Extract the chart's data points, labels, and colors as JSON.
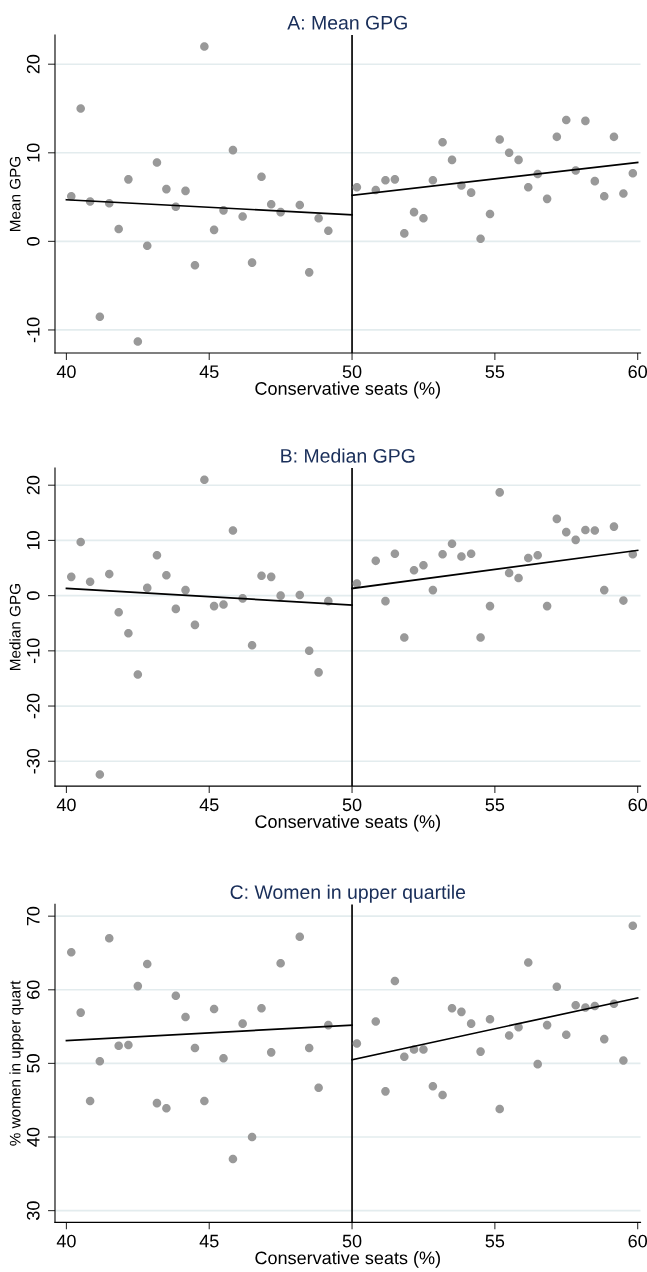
{
  "chart_data": [
    {
      "type": "scatter",
      "title": "A: Mean GPG",
      "xlabel": "Conservative seats (%)",
      "ylabel": "Mean GPG",
      "xlim": [
        39.6,
        60.1
      ],
      "xticks": [
        40,
        45,
        50,
        55,
        60
      ],
      "ylim": [
        -12.6,
        23.3
      ],
      "yticks": [
        {
          "value": -10,
          "label": "-10"
        },
        0,
        10,
        20
      ],
      "grid": "y",
      "marker": "circle",
      "ref_lines": [
        {
          "axis": "x",
          "value": 50,
          "color": "#000000"
        }
      ],
      "series": [
        {
          "color": "#999999",
          "x": [
            40.17,
            40.5,
            40.83,
            41.17,
            41.5,
            41.83,
            42.17,
            42.5,
            42.83,
            43.17,
            43.5,
            43.83,
            44.17,
            44.5,
            44.83,
            45.17,
            45.5,
            45.83,
            46.17,
            46.5,
            46.83,
            47.17,
            47.5,
            48.17,
            48.5,
            48.83,
            49.17,
            50.17,
            50.83,
            51.17,
            51.5,
            51.83,
            52.17,
            52.5,
            52.83,
            53.17,
            53.5,
            53.83,
            54.17,
            54.5,
            54.83,
            55.17,
            55.5,
            55.83,
            56.17,
            56.5,
            56.83,
            57.17,
            57.5,
            57.83,
            58.17,
            58.5,
            58.83,
            59.17,
            59.5,
            59.83
          ],
          "values": [
            5.1,
            15.0,
            4.5,
            -8.5,
            4.3,
            1.4,
            7.0,
            -11.3,
            -0.5,
            8.9,
            5.9,
            3.9,
            5.7,
            -2.7,
            22.0,
            1.3,
            3.5,
            10.3,
            2.8,
            -2.4,
            7.3,
            4.2,
            3.3,
            4.1,
            -3.5,
            2.6,
            1.2,
            6.1,
            5.8,
            6.9,
            7.0,
            0.9,
            3.3,
            2.6,
            6.9,
            11.2,
            9.2,
            6.3,
            5.5,
            0.3,
            3.1,
            11.5,
            10.0,
            9.2,
            6.1,
            7.6,
            4.8,
            11.8,
            13.7,
            8.0,
            13.6,
            6.8,
            5.1,
            11.8,
            5.4,
            7.7
          ]
        },
        {
          "type": "line",
          "marker": "none",
          "color": "#000000",
          "x": [
            40,
            50
          ],
          "values": [
            4.7,
            3.0
          ]
        },
        {
          "type": "line",
          "marker": "none",
          "color": "#000000",
          "x": [
            50,
            60
          ],
          "values": [
            5.2,
            8.9
          ]
        }
      ]
    },
    {
      "type": "scatter",
      "title": "B: Median GPG",
      "xlabel": "Conservative seats (%)",
      "ylabel": "Median GPG",
      "xlim": [
        39.6,
        60.1
      ],
      "xticks": [
        40,
        45,
        50,
        55,
        60
      ],
      "ylim": [
        -34.5,
        23.1
      ],
      "yticks": [
        {
          "value": -30,
          "label": "-30"
        },
        {
          "value": -20,
          "label": "-20"
        },
        {
          "value": -10,
          "label": "-10"
        },
        0,
        10,
        20
      ],
      "grid": "y",
      "marker": "circle",
      "ref_lines": [
        {
          "axis": "x",
          "value": 50,
          "color": "#000000"
        }
      ],
      "series": [
        {
          "color": "#999999",
          "x": [
            40.17,
            40.5,
            40.83,
            41.17,
            41.5,
            41.83,
            42.17,
            42.5,
            42.83,
            43.17,
            43.5,
            43.83,
            44.17,
            44.5,
            44.83,
            45.17,
            45.5,
            45.83,
            46.17,
            46.5,
            46.83,
            47.17,
            47.5,
            48.17,
            48.5,
            48.83,
            49.17,
            50.17,
            50.83,
            51.17,
            51.5,
            51.83,
            52.17,
            52.5,
            52.83,
            53.17,
            53.5,
            53.83,
            54.17,
            54.5,
            54.83,
            55.17,
            55.5,
            55.83,
            56.17,
            56.5,
            56.83,
            57.17,
            57.5,
            57.83,
            58.17,
            58.5,
            58.83,
            59.17,
            59.5,
            59.83
          ],
          "values": [
            3.4,
            9.7,
            2.5,
            -32.4,
            3.9,
            -3.0,
            -6.8,
            -14.3,
            1.4,
            7.3,
            3.7,
            -2.4,
            1.0,
            -5.3,
            21.0,
            -1.9,
            -1.6,
            11.8,
            -0.5,
            -9.0,
            3.6,
            3.4,
            0.0,
            0.1,
            -10.0,
            -13.9,
            -1.0,
            2.2,
            6.3,
            -1.0,
            7.6,
            -7.6,
            4.6,
            5.5,
            1.0,
            7.5,
            9.4,
            7.1,
            7.6,
            -7.6,
            -1.9,
            18.7,
            4.1,
            3.2,
            6.8,
            7.3,
            -1.9,
            13.9,
            11.5,
            10.1,
            11.9,
            11.8,
            1.0,
            12.5,
            -0.9,
            7.5
          ]
        },
        {
          "type": "line",
          "marker": "none",
          "color": "#000000",
          "x": [
            40,
            50
          ],
          "values": [
            1.3,
            -1.7
          ]
        },
        {
          "type": "line",
          "marker": "none",
          "color": "#000000",
          "x": [
            50,
            60
          ],
          "values": [
            1.3,
            8.2
          ]
        }
      ]
    },
    {
      "type": "scatter",
      "title": "C: Women in upper quartile",
      "xlabel": "Conservative seats (%)",
      "ylabel": "% women in upper quart",
      "xlim": [
        39.6,
        60.1
      ],
      "xticks": [
        40,
        45,
        50,
        55,
        60
      ],
      "ylim": [
        28.4,
        71.6
      ],
      "yticks": [
        30,
        40,
        50,
        60,
        70
      ],
      "grid": "y",
      "marker": "circle",
      "ref_lines": [
        {
          "axis": "x",
          "value": 50,
          "color": "#000000"
        }
      ],
      "series": [
        {
          "color": "#999999",
          "x": [
            40.17,
            40.5,
            40.83,
            41.17,
            41.5,
            41.83,
            42.17,
            42.5,
            42.83,
            43.17,
            43.5,
            43.83,
            44.17,
            44.5,
            44.83,
            45.17,
            45.5,
            45.83,
            46.17,
            46.5,
            46.83,
            47.17,
            47.5,
            48.17,
            48.5,
            48.83,
            49.17,
            50.17,
            50.83,
            51.17,
            51.5,
            51.83,
            52.17,
            52.5,
            52.83,
            53.17,
            53.5,
            53.83,
            54.17,
            54.5,
            54.83,
            55.17,
            55.5,
            55.83,
            56.17,
            56.5,
            56.83,
            57.17,
            57.5,
            57.83,
            58.17,
            58.5,
            58.83,
            59.17,
            59.5,
            59.83
          ],
          "values": [
            65.1,
            56.9,
            44.9,
            50.3,
            67.0,
            52.4,
            52.5,
            60.5,
            63.5,
            44.6,
            43.9,
            59.2,
            56.3,
            52.1,
            44.9,
            57.4,
            50.7,
            37.0,
            55.4,
            40.0,
            57.5,
            51.5,
            63.6,
            67.2,
            52.1,
            46.7,
            55.2,
            52.7,
            55.7,
            46.2,
            61.2,
            50.9,
            51.9,
            51.9,
            46.9,
            45.7,
            57.5,
            57.0,
            55.4,
            51.6,
            56.0,
            43.8,
            53.8,
            54.9,
            63.7,
            49.9,
            55.2,
            60.4,
            53.9,
            57.9,
            57.6,
            57.8,
            53.3,
            58.1,
            50.4,
            68.7
          ]
        },
        {
          "type": "line",
          "marker": "none",
          "color": "#000000",
          "x": [
            40,
            50
          ],
          "values": [
            53.1,
            55.2
          ]
        },
        {
          "type": "line",
          "marker": "none",
          "color": "#000000",
          "x": [
            50,
            60
          ],
          "values": [
            50.5,
            58.9
          ]
        }
      ]
    }
  ]
}
